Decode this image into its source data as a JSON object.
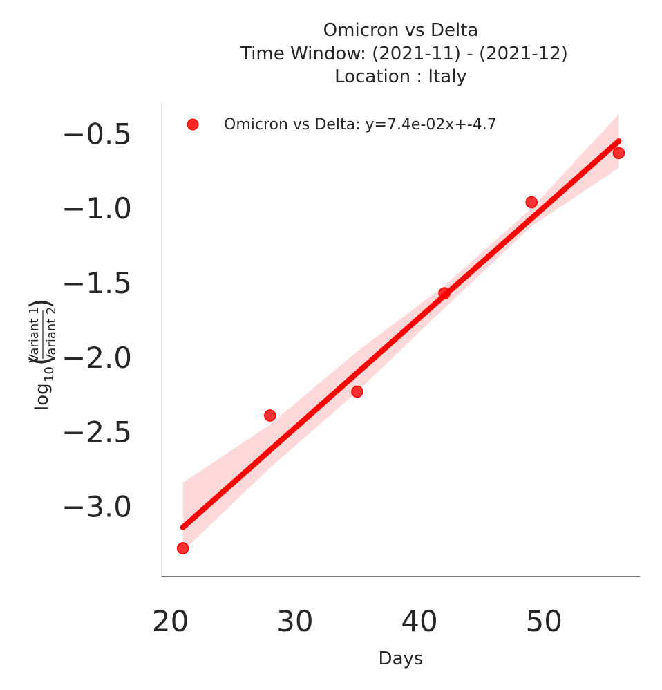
{
  "chart_data": {
    "type": "scatter",
    "title_lines": [
      "Omicron vs Delta",
      "Time Window: (2021-11) - (2021-12)",
      "Location : Italy"
    ],
    "xlabel": "Days",
    "ylabel": {
      "prefix": "log",
      "subscript": "10",
      "numerator": "Variant 1",
      "denominator": "Variant 2"
    },
    "xlim": [
      19.3,
      57.7
    ],
    "ylim": [
      -3.47,
      -0.29
    ],
    "x_ticks": [
      20,
      30,
      40,
      50
    ],
    "x_tick_labels": [
      "20",
      "30",
      "40",
      "50"
    ],
    "y_ticks": [
      -3.0,
      -2.5,
      -2.0,
      -1.5,
      -1.0,
      -0.5
    ],
    "y_tick_labels": [
      "−3.0",
      "−2.5",
      "−2.0",
      "−1.5",
      "−1.0",
      "−0.5"
    ],
    "grid": false,
    "legend_position": "top-left",
    "series": [
      {
        "name": "Omicron vs Delta: y=7.4e-02x+-4.7",
        "color": "#ff0000",
        "x": [
          21,
          28,
          35,
          42,
          49,
          56
        ],
        "y": [
          -3.28,
          -2.39,
          -2.23,
          -1.57,
          -0.96,
          -0.63
        ],
        "fit": {
          "x": [
            21,
            56
          ],
          "y": [
            -3.14,
            -0.55
          ]
        },
        "confidence_band": {
          "x": [
            21,
            28,
            35,
            42,
            49,
            56
          ],
          "upper": [
            -2.84,
            -2.45,
            -1.96,
            -1.52,
            -1.0,
            -0.37
          ],
          "lower": [
            -3.3,
            -2.74,
            -2.23,
            -1.67,
            -1.12,
            -0.73
          ]
        }
      }
    ]
  }
}
